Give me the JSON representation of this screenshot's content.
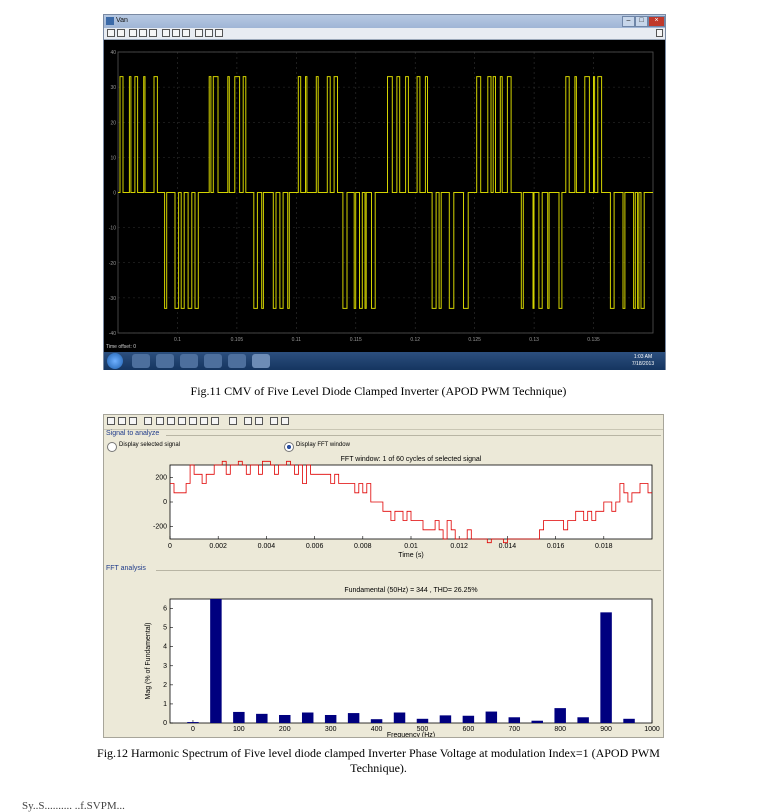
{
  "fig11": {
    "window_title": "Van",
    "status_text": "Time offset: 0",
    "clock_time": "1:03 AM",
    "clock_date": "7/18/2013",
    "caption": "Fig.11  CMV of Five Level Diode Clamped Inverter (APOD PWM Technique)",
    "chart_data": {
      "type": "line",
      "title": "",
      "xlabel": "",
      "ylabel": "",
      "ylim": [
        -40,
        40
      ],
      "xlim": [
        0.095,
        0.14
      ],
      "yticks": [
        "40",
        "30",
        "20",
        "10",
        "0",
        "-10",
        "-20",
        "-30",
        "-40"
      ],
      "xticks": [
        "0.1",
        "0.105",
        "0.11",
        "0.115",
        "0.12",
        "0.125",
        "0.13",
        "0.135"
      ],
      "grid": true,
      "series": [
        {
          "levels": [
            -33,
            0,
            33
          ],
          "color": "#d4d400"
        }
      ]
    }
  },
  "fig12": {
    "section_signal": "Signal to analyze",
    "radio_selected_signal": "Display selected signal",
    "radio_fft_window": "Display FFT window",
    "fft_window_title": "FFT window: 1 of 60 cycles of selected signal",
    "section_fft": "FFT analysis",
    "fft_title": "Fundamental (50Hz) = 344 , THD= 26.25%",
    "caption_line1": "Fig.12  Harmonic Spectrum of Five level diode clamped Inverter Phase Voltage at modulation Index=1 (APOD PWM",
    "caption_line2": "Technique).",
    "chart_data": [
      {
        "type": "line",
        "xlabel": "Time (s)",
        "ylim": [
          -300,
          300
        ],
        "yticks": [
          "200",
          "0",
          "-200"
        ],
        "xticks": [
          "0",
          "0.002",
          "0.004",
          "0.006",
          "0.008",
          "0.01",
          "0.012",
          "0.014",
          "0.016",
          "0.018"
        ],
        "color": "#e00000",
        "series": [
          {
            "x": [
              0,
              0.001,
              0.002,
              0.003,
              0.004,
              0.005,
              0.006,
              0.007,
              0.008,
              0.009,
              0.01,
              0.011,
              0.012,
              0.013,
              0.014,
              0.015,
              0.016,
              0.017,
              0.018,
              0.019,
              0.02
            ],
            "values": [
              90,
              220,
              290,
              330,
              330,
              290,
              220,
              160,
              60,
              -60,
              -150,
              -230,
              -290,
              -340,
              -330,
              -290,
              -220,
              -160,
              -60,
              90,
              160
            ]
          }
        ]
      },
      {
        "type": "bar",
        "title": "Fundamental (50Hz) = 344 , THD= 26.25%",
        "xlabel": "Frequency (Hz)",
        "ylabel": "Mag (% of Fundamental)",
        "ylim": [
          0,
          6.5
        ],
        "xlim": [
          -50,
          1000
        ],
        "yticks": [
          "0",
          "1",
          "2",
          "3",
          "4",
          "5",
          "6"
        ],
        "xticks": [
          "0",
          "100",
          "200",
          "300",
          "400",
          "500",
          "600",
          "700",
          "800",
          "900",
          "1000"
        ],
        "x": [
          0,
          50,
          100,
          150,
          200,
          250,
          300,
          350,
          400,
          450,
          500,
          550,
          600,
          650,
          700,
          750,
          800,
          850,
          900,
          950
        ],
        "values": [
          0.05,
          6.85,
          0.58,
          0.48,
          0.42,
          0.55,
          0.42,
          0.52,
          0.2,
          0.55,
          0.22,
          0.4,
          0.38,
          0.6,
          0.3,
          0.12,
          0.78,
          0.3,
          5.8,
          0.22
        ],
        "color": "#00007f"
      }
    ]
  },
  "footer_text": "Sy..S.......... ..f.SVPM..."
}
